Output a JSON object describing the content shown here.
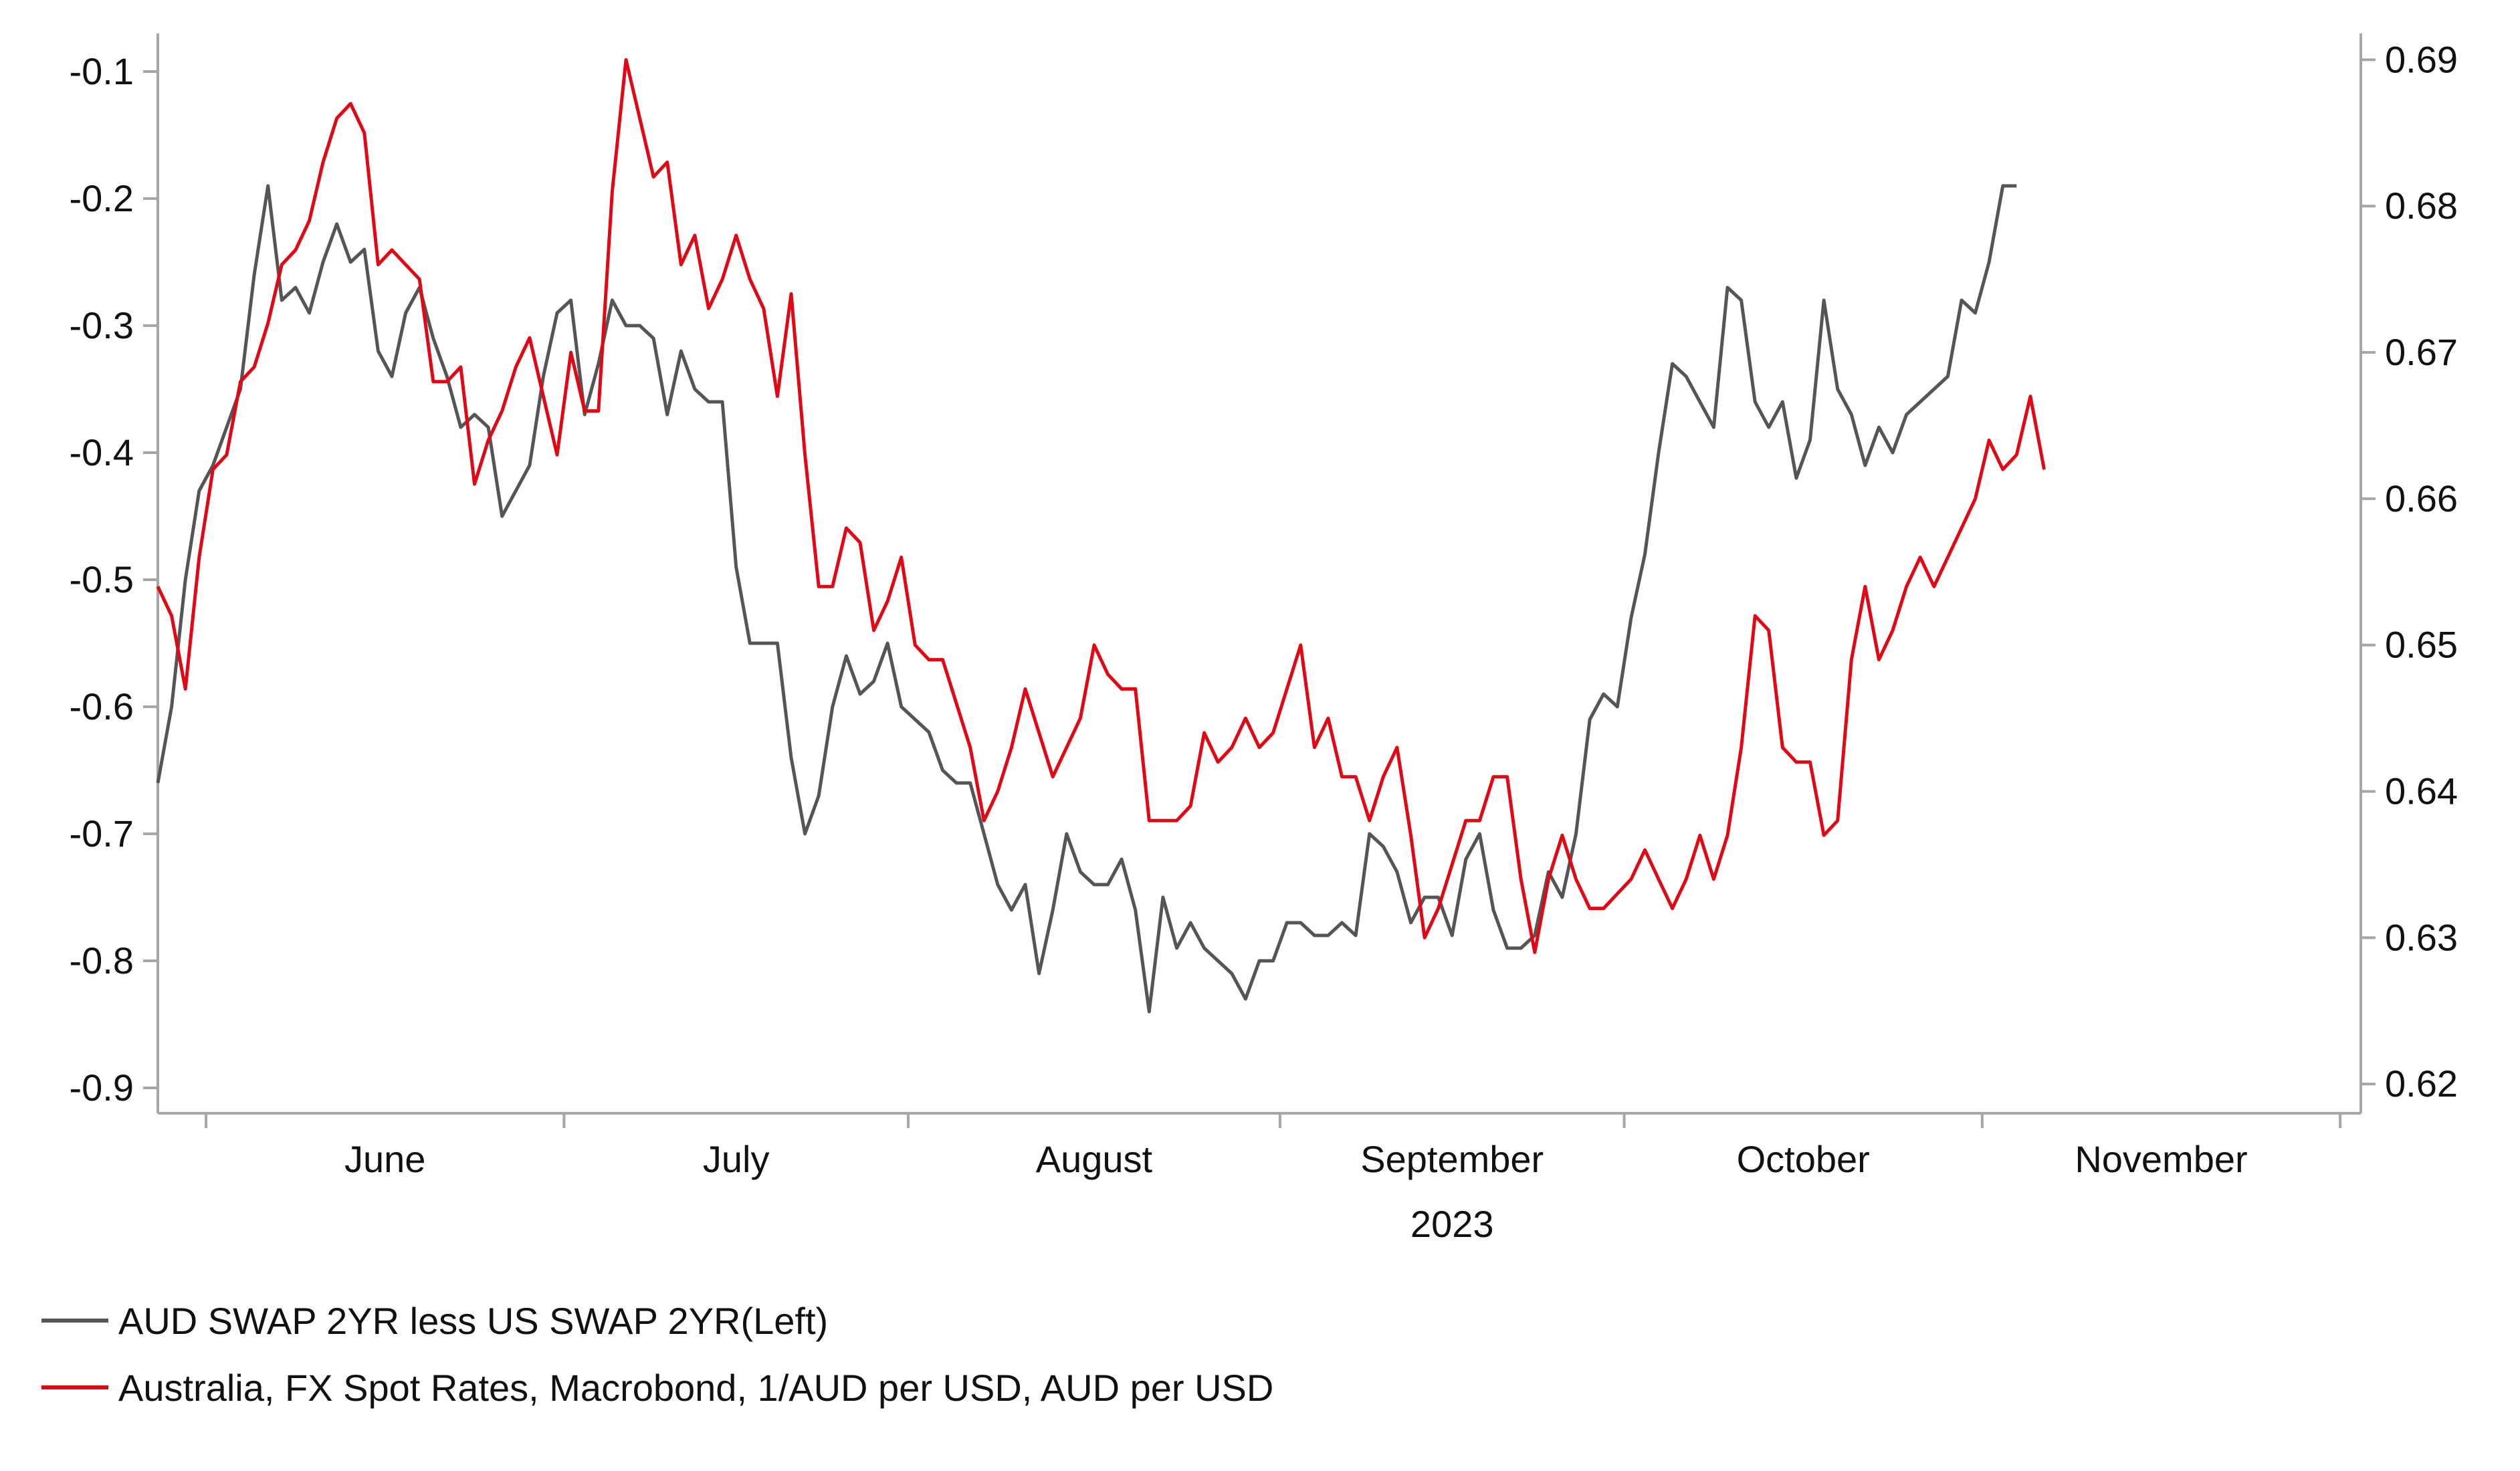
{
  "chart_data": {
    "type": "line",
    "title": "",
    "xlabel": "2023",
    "ylabel_left": "",
    "ylabel_right": "",
    "x_range": [
      0,
      160
    ],
    "y_left": {
      "ylim": [
        -0.92,
        -0.07
      ],
      "ticks": [
        -0.1,
        -0.2,
        -0.3,
        -0.4,
        -0.5,
        -0.6,
        -0.7,
        -0.8,
        -0.9
      ],
      "tick_labels": [
        "-0.1",
        "-0.2",
        "-0.3",
        "-0.4",
        "-0.5",
        "-0.6",
        "-0.7",
        "-0.8",
        "-0.9"
      ]
    },
    "y_right": {
      "ylim": [
        0.618,
        0.6918
      ],
      "ticks": [
        0.69,
        0.68,
        0.67,
        0.66,
        0.65,
        0.64,
        0.63,
        0.62
      ],
      "tick_labels": [
        "0.69",
        "0.68",
        "0.67",
        "0.66",
        "0.65",
        "0.64",
        "0.63",
        "0.62"
      ]
    },
    "month_boundaries": [
      3.5,
      29.5,
      54.5,
      81.5,
      106.5,
      132.5,
      158.5
    ],
    "months": [
      {
        "label": "June",
        "center": 16.5
      },
      {
        "label": "July",
        "center": 42
      },
      {
        "label": "August",
        "center": 68
      },
      {
        "label": "September",
        "center": 94
      },
      {
        "label": "October",
        "center": 119.5
      },
      {
        "label": "November",
        "center": 145.5
      }
    ],
    "year_label": {
      "text": "2023",
      "center": 94
    },
    "legend": {
      "placement": "bottom-left",
      "entries": [
        "AUD SWAP 2YR less US SWAP 2YR(Left)",
        "Australia, FX Spot Rates, Macrobond, 1/AUD per USD, AUD per USD"
      ]
    },
    "series": [
      {
        "name": "AUD SWAP 2YR less US SWAP 2YR(Left)",
        "axis": "left",
        "color": "#555555",
        "points": [
          [
            0,
            -0.66
          ],
          [
            1,
            -0.6
          ],
          [
            2,
            -0.5
          ],
          [
            3,
            -0.43
          ],
          [
            4,
            -0.41
          ],
          [
            5,
            -0.38
          ],
          [
            6,
            -0.35
          ],
          [
            7,
            -0.26
          ],
          [
            8,
            -0.19
          ],
          [
            9,
            -0.28
          ],
          [
            10,
            -0.27
          ],
          [
            11,
            -0.29
          ],
          [
            12,
            -0.25
          ],
          [
            13,
            -0.22
          ],
          [
            14,
            -0.25
          ],
          [
            15,
            -0.24
          ],
          [
            16,
            -0.32
          ],
          [
            17,
            -0.34
          ],
          [
            18,
            -0.29
          ],
          [
            19,
            -0.27
          ],
          [
            20,
            -0.31
          ],
          [
            21,
            -0.34
          ],
          [
            22,
            -0.38
          ],
          [
            23,
            -0.37
          ],
          [
            24,
            -0.38
          ],
          [
            25,
            -0.45
          ],
          [
            26,
            -0.43
          ],
          [
            27,
            -0.41
          ],
          [
            28,
            -0.34
          ],
          [
            29,
            -0.29
          ],
          [
            30,
            -0.28
          ],
          [
            31,
            -0.37
          ],
          [
            32,
            -0.33
          ],
          [
            33,
            -0.28
          ],
          [
            34,
            -0.3
          ],
          [
            35,
            -0.3
          ],
          [
            36,
            -0.31
          ],
          [
            37,
            -0.37
          ],
          [
            38,
            -0.32
          ],
          [
            39,
            -0.35
          ],
          [
            40,
            -0.36
          ],
          [
            41,
            -0.36
          ],
          [
            42,
            -0.49
          ],
          [
            43,
            -0.55
          ],
          [
            44,
            -0.55
          ],
          [
            45,
            -0.55
          ],
          [
            46,
            -0.64
          ],
          [
            47,
            -0.7
          ],
          [
            48,
            -0.67
          ],
          [
            49,
            -0.6
          ],
          [
            50,
            -0.56
          ],
          [
            51,
            -0.59
          ],
          [
            52,
            -0.58
          ],
          [
            53,
            -0.55
          ],
          [
            54,
            -0.6
          ],
          [
            55,
            -0.61
          ],
          [
            56,
            -0.62
          ],
          [
            57,
            -0.65
          ],
          [
            58,
            -0.66
          ],
          [
            59,
            -0.66
          ],
          [
            60,
            -0.7
          ],
          [
            61,
            -0.74
          ],
          [
            62,
            -0.76
          ],
          [
            63,
            -0.74
          ],
          [
            64,
            -0.81
          ],
          [
            65,
            -0.76
          ],
          [
            66,
            -0.7
          ],
          [
            67,
            -0.73
          ],
          [
            68,
            -0.74
          ],
          [
            69,
            -0.74
          ],
          [
            70,
            -0.72
          ],
          [
            71,
            -0.76
          ],
          [
            72,
            -0.84
          ],
          [
            73,
            -0.75
          ],
          [
            74,
            -0.79
          ],
          [
            75,
            -0.77
          ],
          [
            76,
            -0.79
          ],
          [
            77,
            -0.8
          ],
          [
            78,
            -0.81
          ],
          [
            79,
            -0.83
          ],
          [
            80,
            -0.8
          ],
          [
            81,
            -0.8
          ],
          [
            82,
            -0.77
          ],
          [
            83,
            -0.77
          ],
          [
            84,
            -0.78
          ],
          [
            85,
            -0.78
          ],
          [
            86,
            -0.77
          ],
          [
            87,
            -0.78
          ],
          [
            88,
            -0.7
          ],
          [
            89,
            -0.71
          ],
          [
            90,
            -0.73
          ],
          [
            91,
            -0.77
          ],
          [
            92,
            -0.75
          ],
          [
            93,
            -0.75
          ],
          [
            94,
            -0.78
          ],
          [
            95,
            -0.72
          ],
          [
            96,
            -0.7
          ],
          [
            97,
            -0.76
          ],
          [
            98,
            -0.79
          ],
          [
            99,
            -0.79
          ],
          [
            100,
            -0.78
          ],
          [
            101,
            -0.73
          ],
          [
            102,
            -0.75
          ],
          [
            103,
            -0.7
          ],
          [
            104,
            -0.61
          ],
          [
            105,
            -0.59
          ],
          [
            106,
            -0.6
          ],
          [
            107,
            -0.53
          ],
          [
            108,
            -0.48
          ],
          [
            109,
            -0.4
          ],
          [
            110,
            -0.33
          ],
          [
            111,
            -0.34
          ],
          [
            112,
            -0.36
          ],
          [
            113,
            -0.38
          ],
          [
            114,
            -0.27
          ],
          [
            115,
            -0.28
          ],
          [
            116,
            -0.36
          ],
          [
            117,
            -0.38
          ],
          [
            118,
            -0.36
          ],
          [
            119,
            -0.42
          ],
          [
            120,
            -0.39
          ],
          [
            121,
            -0.28
          ],
          [
            122,
            -0.35
          ],
          [
            123,
            -0.37
          ],
          [
            124,
            -0.41
          ],
          [
            125,
            -0.38
          ],
          [
            126,
            -0.4
          ],
          [
            127,
            -0.37
          ],
          [
            128,
            -0.36
          ],
          [
            129,
            -0.35
          ],
          [
            130,
            -0.34
          ],
          [
            131,
            -0.28
          ],
          [
            132,
            -0.29
          ],
          [
            133,
            -0.25
          ],
          [
            134,
            -0.19
          ],
          [
            135,
            -0.19
          ]
        ]
      },
      {
        "name": "Australia, FX Spot Rates, Macrobond, 1/AUD per USD, AUD per USD",
        "axis": "right",
        "color": "#e30613",
        "points": [
          [
            0,
            0.654
          ],
          [
            1,
            0.652
          ],
          [
            2,
            0.647
          ],
          [
            3,
            0.656
          ],
          [
            4,
            0.662
          ],
          [
            5,
            0.663
          ],
          [
            6,
            0.668
          ],
          [
            7,
            0.669
          ],
          [
            8,
            0.672
          ],
          [
            9,
            0.676
          ],
          [
            10,
            0.677
          ],
          [
            11,
            0.679
          ],
          [
            12,
            0.683
          ],
          [
            13,
            0.686
          ],
          [
            14,
            0.687
          ],
          [
            15,
            0.685
          ],
          [
            16,
            0.676
          ],
          [
            17,
            0.677
          ],
          [
            18,
            0.676
          ],
          [
            19,
            0.675
          ],
          [
            20,
            0.668
          ],
          [
            21,
            0.668
          ],
          [
            22,
            0.669
          ],
          [
            23,
            0.661
          ],
          [
            24,
            0.664
          ],
          [
            25,
            0.666
          ],
          [
            26,
            0.669
          ],
          [
            27,
            0.671
          ],
          [
            28,
            0.667
          ],
          [
            29,
            0.663
          ],
          [
            30,
            0.67
          ],
          [
            31,
            0.666
          ],
          [
            32,
            0.666
          ],
          [
            33,
            0.681
          ],
          [
            34,
            0.69
          ],
          [
            35,
            0.686
          ],
          [
            36,
            0.682
          ],
          [
            37,
            0.683
          ],
          [
            38,
            0.676
          ],
          [
            39,
            0.678
          ],
          [
            40,
            0.673
          ],
          [
            41,
            0.675
          ],
          [
            42,
            0.678
          ],
          [
            43,
            0.675
          ],
          [
            44,
            0.673
          ],
          [
            45,
            0.667
          ],
          [
            46,
            0.674
          ],
          [
            47,
            0.663
          ],
          [
            48,
            0.654
          ],
          [
            49,
            0.654
          ],
          [
            50,
            0.658
          ],
          [
            51,
            0.657
          ],
          [
            52,
            0.651
          ],
          [
            53,
            0.653
          ],
          [
            54,
            0.656
          ],
          [
            55,
            0.65
          ],
          [
            56,
            0.649
          ],
          [
            57,
            0.649
          ],
          [
            58,
            0.646
          ],
          [
            59,
            0.643
          ],
          [
            60,
            0.638
          ],
          [
            61,
            0.64
          ],
          [
            62,
            0.643
          ],
          [
            63,
            0.647
          ],
          [
            64,
            0.644
          ],
          [
            65,
            0.641
          ],
          [
            66,
            0.643
          ],
          [
            67,
            0.645
          ],
          [
            68,
            0.65
          ],
          [
            69,
            0.648
          ],
          [
            70,
            0.647
          ],
          [
            71,
            0.647
          ],
          [
            72,
            0.638
          ],
          [
            73,
            0.638
          ],
          [
            74,
            0.638
          ],
          [
            75,
            0.639
          ],
          [
            76,
            0.644
          ],
          [
            77,
            0.642
          ],
          [
            78,
            0.643
          ],
          [
            79,
            0.645
          ],
          [
            80,
            0.643
          ],
          [
            81,
            0.644
          ],
          [
            82,
            0.647
          ],
          [
            83,
            0.65
          ],
          [
            84,
            0.643
          ],
          [
            85,
            0.645
          ],
          [
            86,
            0.641
          ],
          [
            87,
            0.641
          ],
          [
            88,
            0.638
          ],
          [
            89,
            0.641
          ],
          [
            90,
            0.643
          ],
          [
            91,
            0.637
          ],
          [
            92,
            0.63
          ],
          [
            93,
            0.632
          ],
          [
            94,
            0.635
          ],
          [
            95,
            0.638
          ],
          [
            96,
            0.638
          ],
          [
            97,
            0.641
          ],
          [
            98,
            0.641
          ],
          [
            99,
            0.634
          ],
          [
            100,
            0.629
          ],
          [
            101,
            0.634
          ],
          [
            102,
            0.637
          ],
          [
            103,
            0.634
          ],
          [
            104,
            0.632
          ],
          [
            105,
            0.632
          ],
          [
            106,
            0.633
          ],
          [
            107,
            0.634
          ],
          [
            108,
            0.636
          ],
          [
            109,
            0.634
          ],
          [
            110,
            0.632
          ],
          [
            111,
            0.634
          ],
          [
            112,
            0.637
          ],
          [
            113,
            0.634
          ],
          [
            114,
            0.637
          ],
          [
            115,
            0.643
          ],
          [
            116,
            0.652
          ],
          [
            117,
            0.651
          ],
          [
            118,
            0.643
          ],
          [
            119,
            0.642
          ],
          [
            120,
            0.642
          ],
          [
            121,
            0.637
          ],
          [
            122,
            0.638
          ],
          [
            123,
            0.649
          ],
          [
            124,
            0.654
          ],
          [
            125,
            0.649
          ],
          [
            126,
            0.651
          ],
          [
            127,
            0.654
          ],
          [
            128,
            0.656
          ],
          [
            129,
            0.654
          ],
          [
            130,
            0.656
          ],
          [
            131,
            0.658
          ],
          [
            132,
            0.66
          ],
          [
            133,
            0.664
          ],
          [
            134,
            0.662
          ],
          [
            135,
            0.663
          ],
          [
            136,
            0.667
          ],
          [
            137,
            0.662
          ]
        ]
      }
    ]
  }
}
